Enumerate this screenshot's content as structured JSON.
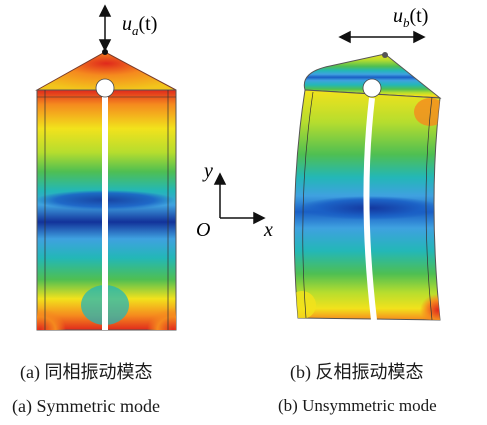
{
  "panels": [
    {
      "id": "a",
      "force_label": "u",
      "force_subscript": "a",
      "force_arg": "(t)",
      "caption_cn": "(a)  同相振动模态",
      "caption_en": "(a)  Symmetric mode"
    },
    {
      "id": "b",
      "force_label": "u",
      "force_subscript": "b",
      "force_arg": "(t)",
      "caption_cn": "(b)  反相振动模态",
      "caption_en": "(b)  Unsymmetric mode"
    }
  ],
  "axes": {
    "y_label": "y",
    "x_label": "x",
    "origin_label": "O"
  },
  "colors": {
    "red": "#e0291c",
    "orange": "#f58a1e",
    "yellow": "#f2e21c",
    "yellow_green": "#b6dd2e",
    "green": "#4fbf52",
    "cyan": "#23b7b7",
    "light_blue": "#3fa1e0",
    "blue": "#1a5fc5",
    "dark_blue": "#12329a"
  }
}
